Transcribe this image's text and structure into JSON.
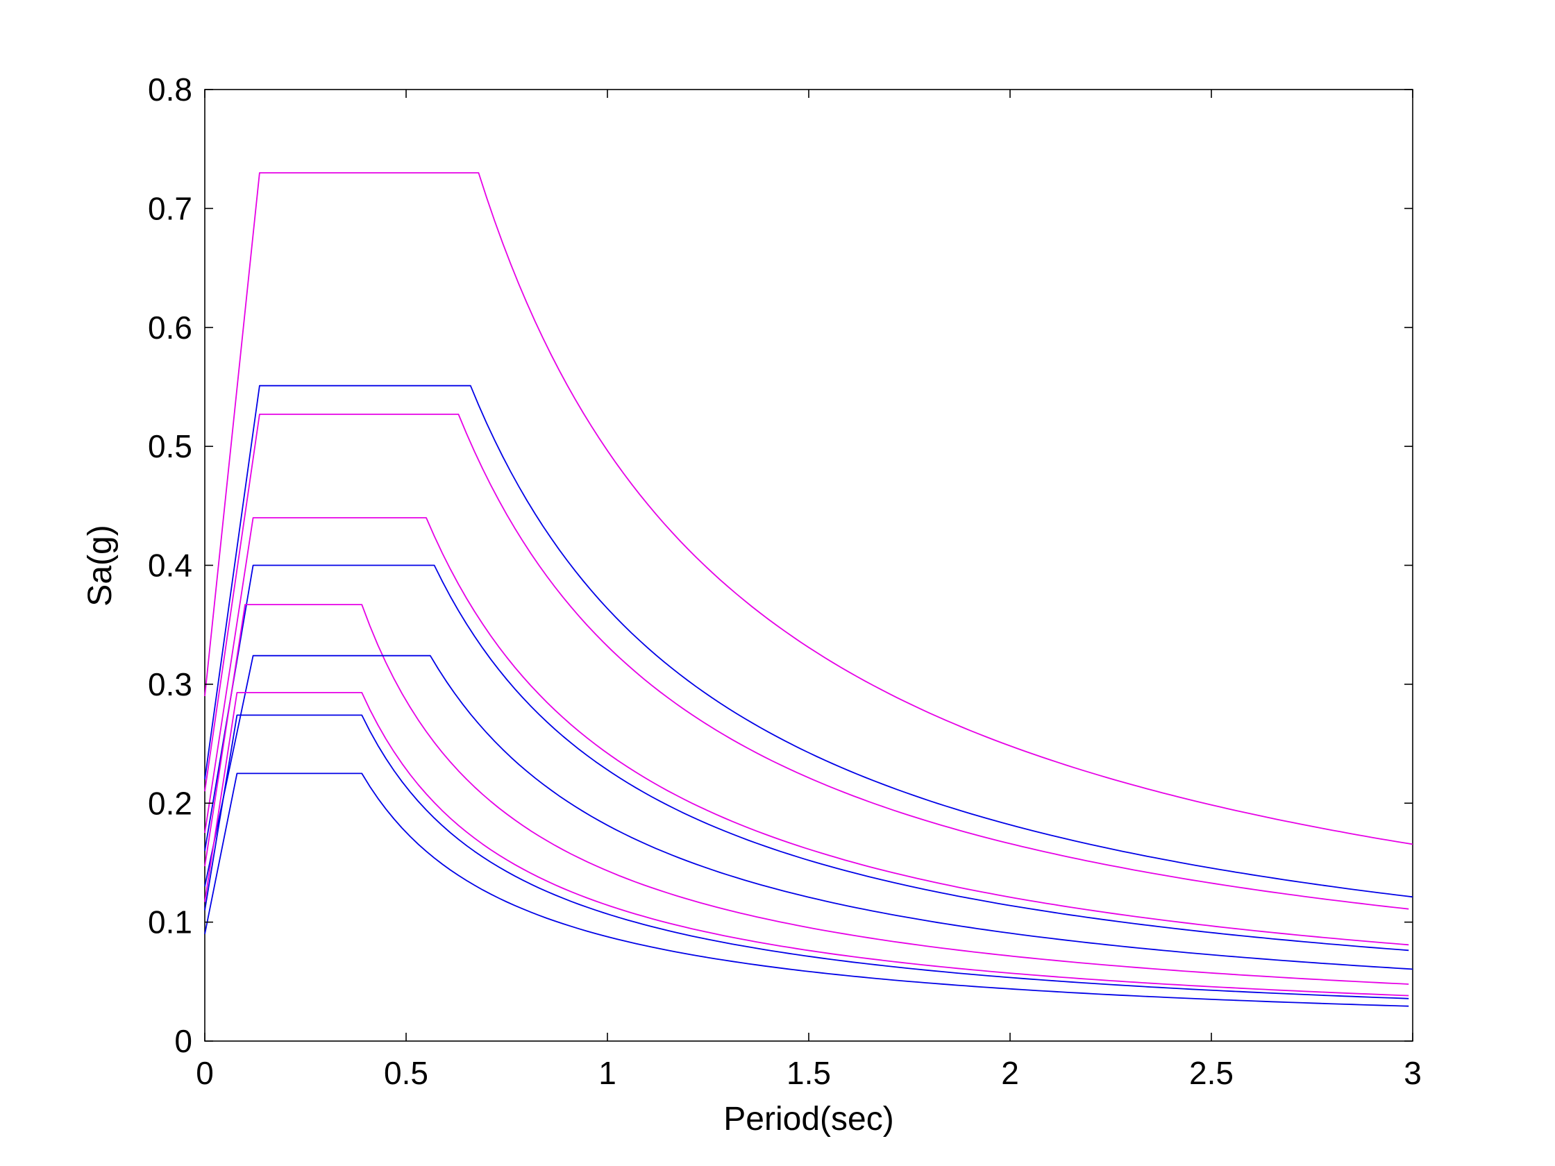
{
  "chart_data": {
    "type": "line",
    "title": "",
    "xlabel": "Period(sec)",
    "ylabel": "Sa(g)",
    "xlim": [
      0,
      3
    ],
    "ylim": [
      0,
      0.8
    ],
    "xticks": [
      0,
      0.5,
      1,
      1.5,
      2,
      2.5,
      3
    ],
    "xtick_labels": [
      "0",
      "0.5",
      "1",
      "1.5",
      "2",
      "2.5",
      "3"
    ],
    "yticks": [
      0,
      0.1,
      0.2,
      0.3,
      0.4,
      0.5,
      0.6,
      0.7,
      0.8
    ],
    "ytick_labels": [
      "0",
      "0.1",
      "0.2",
      "0.3",
      "0.4",
      "0.5",
      "0.6",
      "0.7",
      "0.8"
    ],
    "grid": false,
    "legend": "none",
    "colors": {
      "magenta": "#e600e6",
      "blue": "#0000e6"
    },
    "series": [
      {
        "color": "magenta",
        "pga": 0.29,
        "plateau": 0.73,
        "t0": 0.136,
        "ts": 0.68
      },
      {
        "color": "blue",
        "pga": 0.22,
        "plateau": 0.551,
        "t0": 0.136,
        "ts": 0.66
      },
      {
        "color": "magenta",
        "pga": 0.21,
        "plateau": 0.527,
        "t0": 0.136,
        "ts": 0.63
      },
      {
        "color": "magenta",
        "pga": 0.175,
        "plateau": 0.44,
        "t0": 0.12,
        "ts": 0.55
      },
      {
        "color": "blue",
        "pga": 0.16,
        "plateau": 0.4,
        "t0": 0.12,
        "ts": 0.57
      },
      {
        "color": "magenta",
        "pga": 0.147,
        "plateau": 0.367,
        "t0": 0.1,
        "ts": 0.39
      },
      {
        "color": "blue",
        "pga": 0.13,
        "plateau": 0.324,
        "t0": 0.12,
        "ts": 0.56
      },
      {
        "color": "magenta",
        "pga": 0.117,
        "plateau": 0.293,
        "t0": 0.08,
        "ts": 0.39
      },
      {
        "color": "blue",
        "pga": 0.11,
        "plateau": 0.274,
        "t0": 0.08,
        "ts": 0.39
      },
      {
        "color": "blue",
        "pga": 0.09,
        "plateau": 0.225,
        "t0": 0.08,
        "ts": 0.39
      }
    ]
  }
}
